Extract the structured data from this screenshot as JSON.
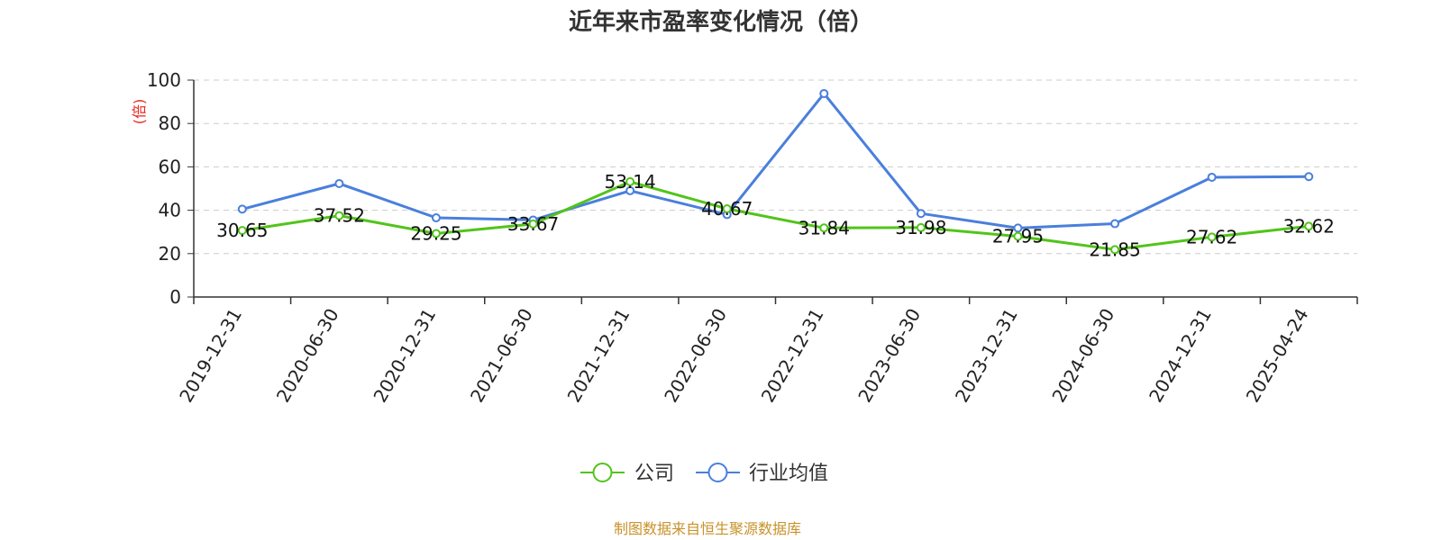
{
  "chart_data": {
    "type": "line",
    "title": "近年来市盈率变化情况（倍）",
    "ylabel": "(倍)",
    "xlabel": "",
    "categories": [
      "2019-12-31",
      "2020-06-30",
      "2020-12-31",
      "2021-06-30",
      "2021-12-31",
      "2022-06-30",
      "2022-12-31",
      "2023-06-30",
      "2023-12-31",
      "2024-06-30",
      "2024-12-31",
      "2025-04-24"
    ],
    "ylim": [
      0,
      100
    ],
    "yticks": [
      0,
      20,
      40,
      60,
      80,
      100
    ],
    "grid": true,
    "legend_position": "bottom-center",
    "series": [
      {
        "name": "公司",
        "color": "#52c41a",
        "values": [
          30.65,
          37.52,
          29.25,
          33.67,
          53.14,
          40.67,
          31.84,
          31.98,
          27.95,
          21.85,
          27.62,
          32.62
        ],
        "labels": [
          "30.65",
          "37.52",
          "29.25",
          "33.67",
          "53.14",
          "40.67",
          "31.84",
          "31.98",
          "27.95",
          "21.85",
          "27.62",
          "32.62"
        ]
      },
      {
        "name": "行业均值",
        "color": "#4a7fdc",
        "values": [
          40.5,
          52.3,
          36.5,
          35.5,
          49.0,
          38.0,
          93.8,
          38.5,
          31.8,
          33.8,
          55.2,
          55.5
        ]
      }
    ]
  },
  "source_text": "制图数据来自恒生聚源数据库",
  "colors": {
    "ylabel": "#e8251e",
    "source": "#c8922a",
    "grid": "#cccccc",
    "axis": "#333333"
  }
}
